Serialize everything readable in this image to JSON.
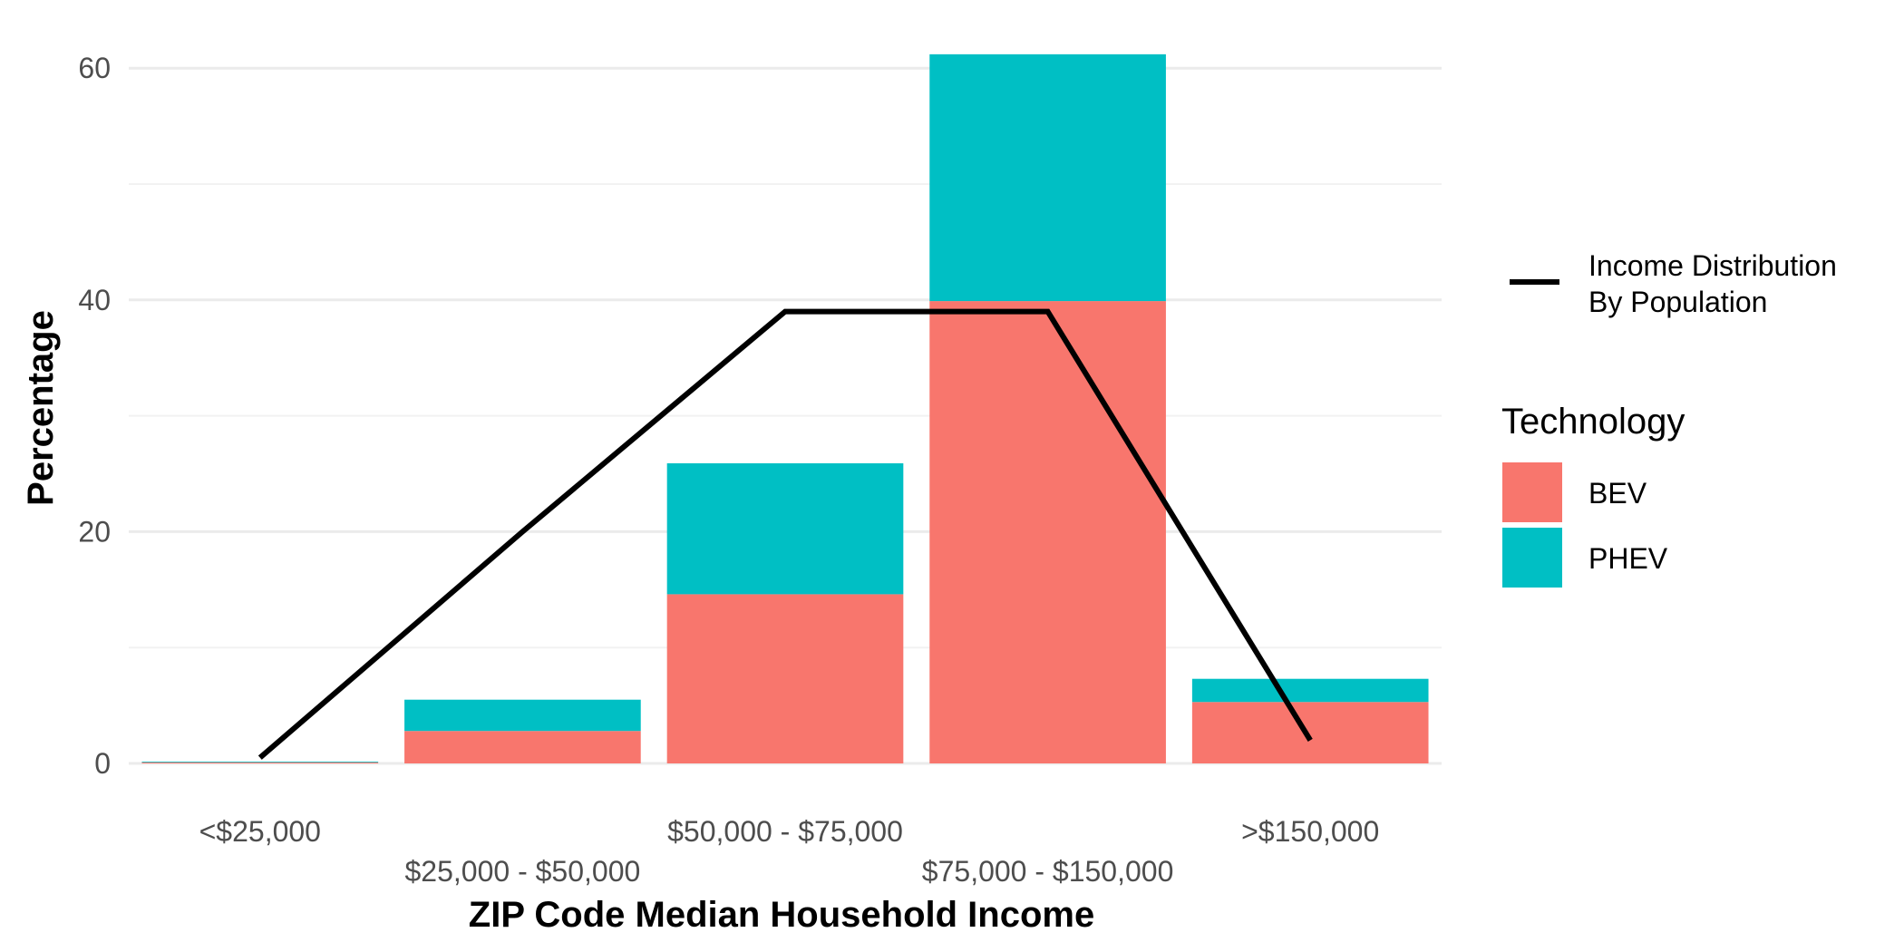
{
  "chart_data": {
    "type": "bar",
    "stacked": true,
    "categories": [
      "<$25,000",
      "$25,000 - $50,000",
      "$50,000 - $75,000",
      "$75,000 - $150,000",
      ">$150,000"
    ],
    "series": [
      {
        "name": "BEV",
        "color": "#F8766D",
        "values": [
          0.1,
          2.8,
          14.6,
          39.9,
          5.3
        ]
      },
      {
        "name": "PHEV",
        "color": "#00BFC4",
        "values": [
          0.05,
          2.7,
          11.3,
          21.3,
          2.0
        ]
      }
    ],
    "line": {
      "name": "Income Distribution By Population",
      "color": "#000000",
      "values": [
        0.5,
        20,
        39,
        39,
        2
      ]
    },
    "xlabel": "ZIP Code Median Household Income",
    "ylabel": "Percentage",
    "ylim": [
      0,
      61
    ],
    "yticks": [
      0,
      20,
      40,
      60
    ],
    "grid": true,
    "legend": {
      "position": "right",
      "line_label_lines": [
        "Income Distribution",
        "By Population"
      ],
      "fill_title": "Technology",
      "fill_items": [
        "BEV",
        "PHEV"
      ]
    }
  }
}
